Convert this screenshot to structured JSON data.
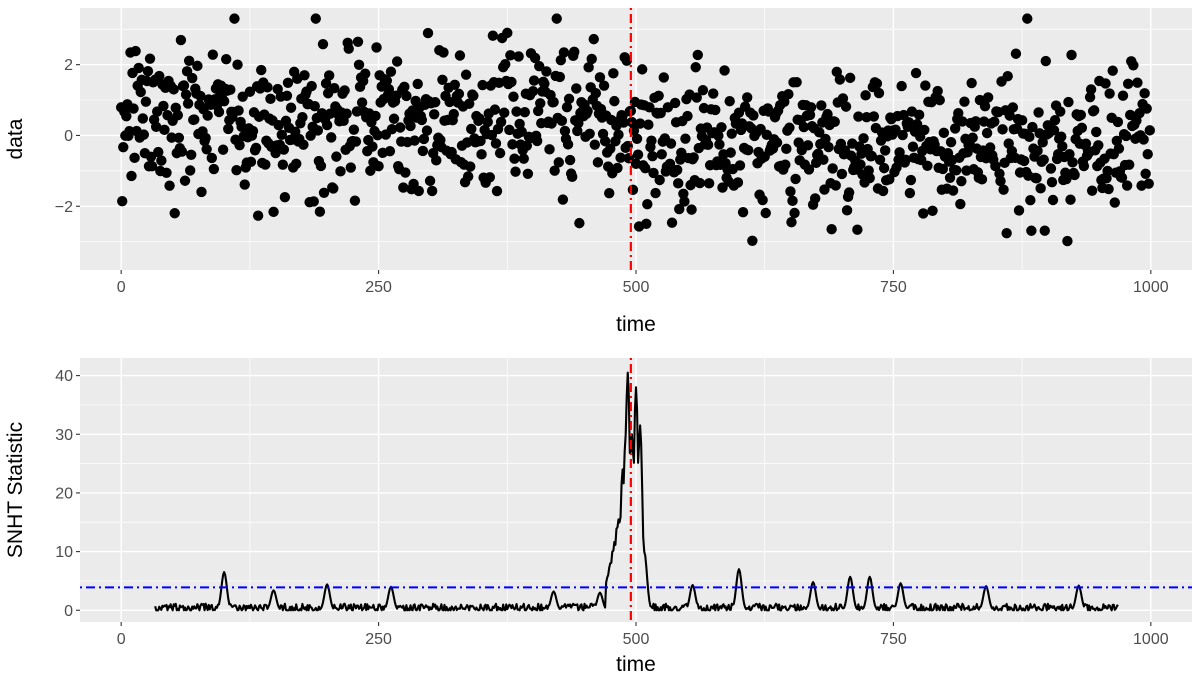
{
  "chart_data": [
    {
      "type": "scatter",
      "xlabel": "time",
      "ylabel": "data",
      "xlim": [
        -40,
        1040
      ],
      "ylim": [
        -3.8,
        3.6
      ],
      "x_ticks": [
        0,
        250,
        500,
        750,
        1000
      ],
      "x_tick_labels": [
        "0",
        "250",
        "500",
        "750",
        "1000"
      ],
      "y_ticks": [
        -2,
        0,
        2
      ],
      "y_tick_labels": [
        "−2",
        "0",
        "2"
      ],
      "grid": true,
      "n_points": 1000,
      "changepoint": 495,
      "segment_means": [
        0.4,
        -0.3
      ],
      "point_color": "#000000",
      "vline": {
        "x": 495,
        "color": "#ff0000",
        "linetype": "dotdash"
      }
    },
    {
      "type": "line",
      "xlabel": "time",
      "ylabel": "SNHT Statistic",
      "xlim": [
        -40,
        1040
      ],
      "ylim": [
        -2,
        43
      ],
      "x_ticks": [
        0,
        250,
        500,
        750,
        1000
      ],
      "x_tick_labels": [
        "0",
        "250",
        "500",
        "750",
        "1000"
      ],
      "y_ticks": [
        0,
        10,
        20,
        30,
        40
      ],
      "y_tick_labels": [
        "0",
        "10",
        "20",
        "30",
        "40"
      ],
      "grid": true,
      "x_range": [
        33,
        968
      ],
      "line_color": "#000000",
      "peaks": [
        {
          "x": 100,
          "y": 6.5
        },
        {
          "x": 148,
          "y": 3.4
        },
        {
          "x": 200,
          "y": 4.4
        },
        {
          "x": 262,
          "y": 4.0
        },
        {
          "x": 420,
          "y": 3.2
        },
        {
          "x": 465,
          "y": 3.0
        },
        {
          "x": 487,
          "y": 24
        },
        {
          "x": 490,
          "y": 30
        },
        {
          "x": 492,
          "y": 40.5
        },
        {
          "x": 496,
          "y": 30
        },
        {
          "x": 500,
          "y": 38
        },
        {
          "x": 504,
          "y": 31.5
        },
        {
          "x": 508,
          "y": 10
        },
        {
          "x": 555,
          "y": 4.3
        },
        {
          "x": 600,
          "y": 7.0
        },
        {
          "x": 672,
          "y": 4.8
        },
        {
          "x": 708,
          "y": 5.7
        },
        {
          "x": 727,
          "y": 5.7
        },
        {
          "x": 757,
          "y": 4.6
        },
        {
          "x": 840,
          "y": 4.1
        },
        {
          "x": 930,
          "y": 4.2
        }
      ],
      "hline": {
        "y": 3.9,
        "color": "#0000ff",
        "linetype": "dotdash"
      },
      "vline": {
        "x": 495,
        "color": "#ff0000",
        "linetype": "dotdash"
      }
    }
  ]
}
